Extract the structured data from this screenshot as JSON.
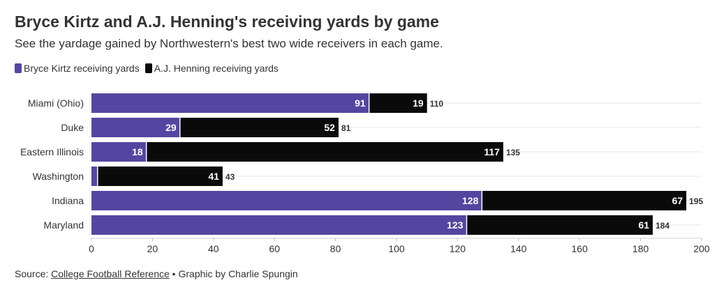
{
  "title": "Bryce Kirtz and A.J. Henning's receiving yards by game",
  "subtitle": "See the yardage gained by Northwestern's best two wide receivers in each game.",
  "legend": [
    {
      "label": "Bryce Kirtz receiving yards",
      "color": "#5446a0"
    },
    {
      "label": "A.J. Henning receiving yards",
      "color": "#0a0a0a"
    }
  ],
  "chart_data": {
    "type": "bar",
    "orientation": "horizontal",
    "stacked": true,
    "title": "Bryce Kirtz and A.J. Henning's receiving yards by game",
    "categories": [
      "Miami (Ohio)",
      "Duke",
      "Eastern Illinois",
      "Washington",
      "Indiana",
      "Maryland"
    ],
    "series": [
      {
        "name": "Bryce Kirtz receiving yards",
        "color": "#5446a0",
        "values": [
          91,
          29,
          18,
          2,
          128,
          123
        ],
        "labels": [
          "91",
          "29",
          "18",
          "",
          "128",
          "123"
        ]
      },
      {
        "name": "A.J. Henning receiving yards",
        "color": "#0a0a0a",
        "values": [
          19,
          52,
          117,
          41,
          67,
          61
        ],
        "labels": [
          "19",
          "52",
          "117",
          "41",
          "67",
          "61"
        ]
      }
    ],
    "totals": [
      110,
      81,
      135,
      43,
      195,
      184
    ],
    "xlim": [
      0,
      200
    ],
    "xticks": [
      0,
      20,
      40,
      60,
      80,
      100,
      120,
      140,
      160,
      180,
      200
    ],
    "xlabel": "",
    "ylabel": "",
    "grid": true,
    "legend_position": "top-left"
  },
  "footer": {
    "source_prefix": "Source: ",
    "source_link": "College Football Reference",
    "credit": " • Graphic by Charlie Spungin"
  }
}
